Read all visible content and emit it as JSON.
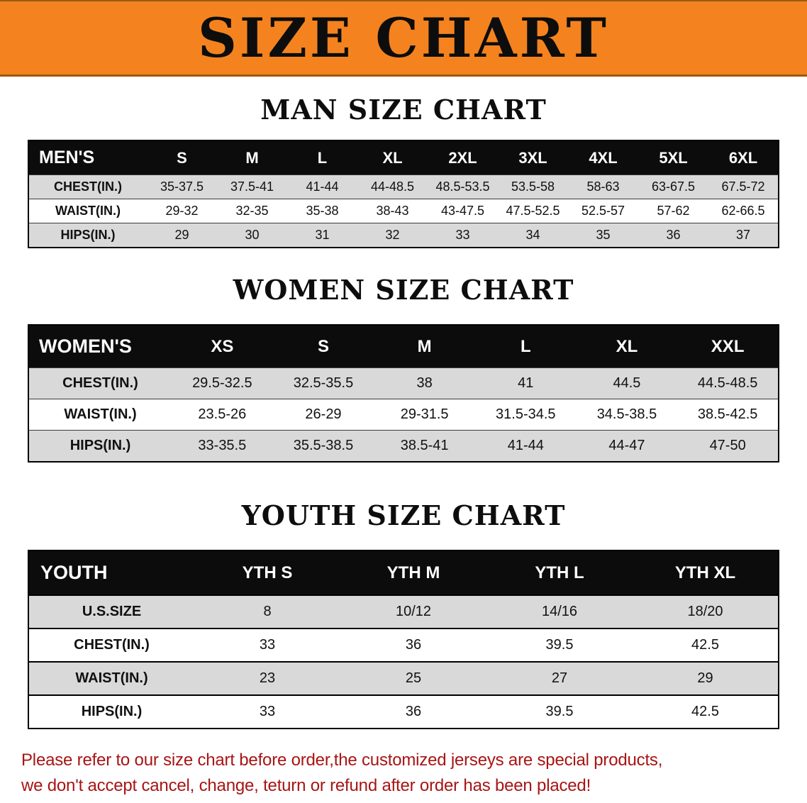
{
  "banner": {
    "title": "SIZE CHART"
  },
  "colors": {
    "banner_bg": "#f4831f",
    "header_row_bg": "#0c0c0c",
    "stripe_row_bg": "#d9d9d9",
    "footer_text": "#a81414"
  },
  "sections": [
    {
      "id": "men",
      "heading": "MAN SIZE CHART",
      "table": {
        "header": [
          "MEN'S",
          "S",
          "M",
          "L",
          "XL",
          "2XL",
          "3XL",
          "4XL",
          "5XL",
          "6XL"
        ],
        "rows": [
          [
            "CHEST(IN.)",
            "35-37.5",
            "37.5-41",
            "41-44",
            "44-48.5",
            "48.5-53.5",
            "53.5-58",
            "58-63",
            "63-67.5",
            "67.5-72"
          ],
          [
            "WAIST(IN.)",
            "29-32",
            "32-35",
            "35-38",
            "38-43",
            "43-47.5",
            "47.5-52.5",
            "52.5-57",
            "57-62",
            "62-66.5"
          ],
          [
            "HIPS(IN.)",
            "29",
            "30",
            "31",
            "32",
            "33",
            "34",
            "35",
            "36",
            "37"
          ]
        ]
      }
    },
    {
      "id": "women",
      "heading": "WOMEN SIZE CHART",
      "table": {
        "header": [
          "WOMEN'S",
          "XS",
          "S",
          "M",
          "L",
          "XL",
          "XXL"
        ],
        "rows": [
          [
            "CHEST(IN.)",
            "29.5-32.5",
            "32.5-35.5",
            "38",
            "41",
            "44.5",
            "44.5-48.5"
          ],
          [
            "WAIST(IN.)",
            "23.5-26",
            "26-29",
            "29-31.5",
            "31.5-34.5",
            "34.5-38.5",
            "38.5-42.5"
          ],
          [
            "HIPS(IN.)",
            "33-35.5",
            "35.5-38.5",
            "38.5-41",
            "41-44",
            "44-47",
            "47-50"
          ]
        ]
      }
    },
    {
      "id": "youth",
      "heading": "YOUTH SIZE CHART",
      "table": {
        "header": [
          "YOUTH",
          "YTH S",
          "YTH M",
          "YTH L",
          "YTH XL"
        ],
        "rows": [
          [
            "U.S.SIZE",
            "8",
            "10/12",
            "14/16",
            "18/20"
          ],
          [
            "CHEST(IN.)",
            "33",
            "36",
            "39.5",
            "42.5"
          ],
          [
            "WAIST(IN.)",
            "23",
            "25",
            "27",
            "29"
          ],
          [
            "HIPS(IN.)",
            "33",
            "36",
            "39.5",
            "42.5"
          ]
        ]
      }
    }
  ],
  "footer": {
    "line1": "Please refer to our size chart before order,the customized jerseys are special products,",
    "line2": "we don't accept cancel, change, teturn or refund after order has been placed!"
  }
}
